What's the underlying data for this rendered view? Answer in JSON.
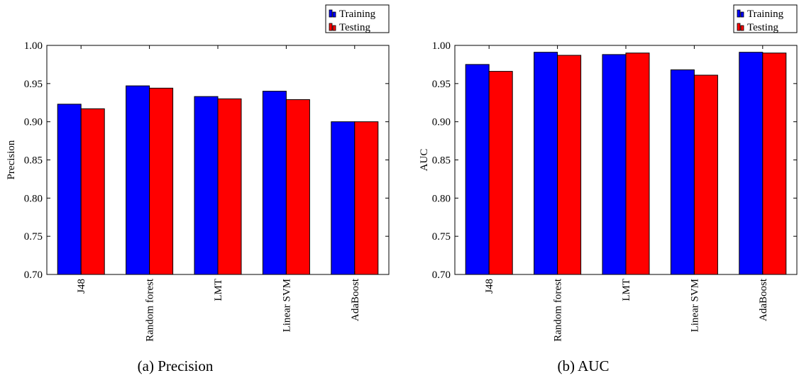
{
  "series_colors": {
    "training": "#0000ff",
    "testing": "#ff0000"
  },
  "chart_data": [
    {
      "type": "bar",
      "caption": "(a) Precision",
      "ylabel": "Precision",
      "xlabel": "",
      "ylim": [
        0.7,
        1.0
      ],
      "yticks": [
        "0.70",
        "0.75",
        "0.80",
        "0.85",
        "0.90",
        "0.95",
        "1.00"
      ],
      "categories": [
        "J48",
        "Random forest",
        "LMT",
        "Linear SVM",
        "AdaBoost"
      ],
      "legend": {
        "position": "top-right"
      },
      "series": [
        {
          "name": "Training",
          "values": [
            0.923,
            0.947,
            0.933,
            0.94,
            0.9
          ]
        },
        {
          "name": "Testing",
          "values": [
            0.917,
            0.944,
            0.93,
            0.929,
            0.9
          ]
        }
      ]
    },
    {
      "type": "bar",
      "caption": "(b) AUC",
      "ylabel": "AUC",
      "xlabel": "",
      "ylim": [
        0.7,
        1.0
      ],
      "yticks": [
        "0.70",
        "0.75",
        "0.80",
        "0.85",
        "0.90",
        "0.95",
        "1.00"
      ],
      "categories": [
        "J48",
        "Random forest",
        "LMT",
        "Linear SVM",
        "AdaBoost"
      ],
      "legend": {
        "position": "top-right"
      },
      "series": [
        {
          "name": "Training",
          "values": [
            0.975,
            0.991,
            0.988,
            0.968,
            0.991
          ]
        },
        {
          "name": "Testing",
          "values": [
            0.966,
            0.987,
            0.99,
            0.961,
            0.99
          ]
        }
      ]
    }
  ]
}
